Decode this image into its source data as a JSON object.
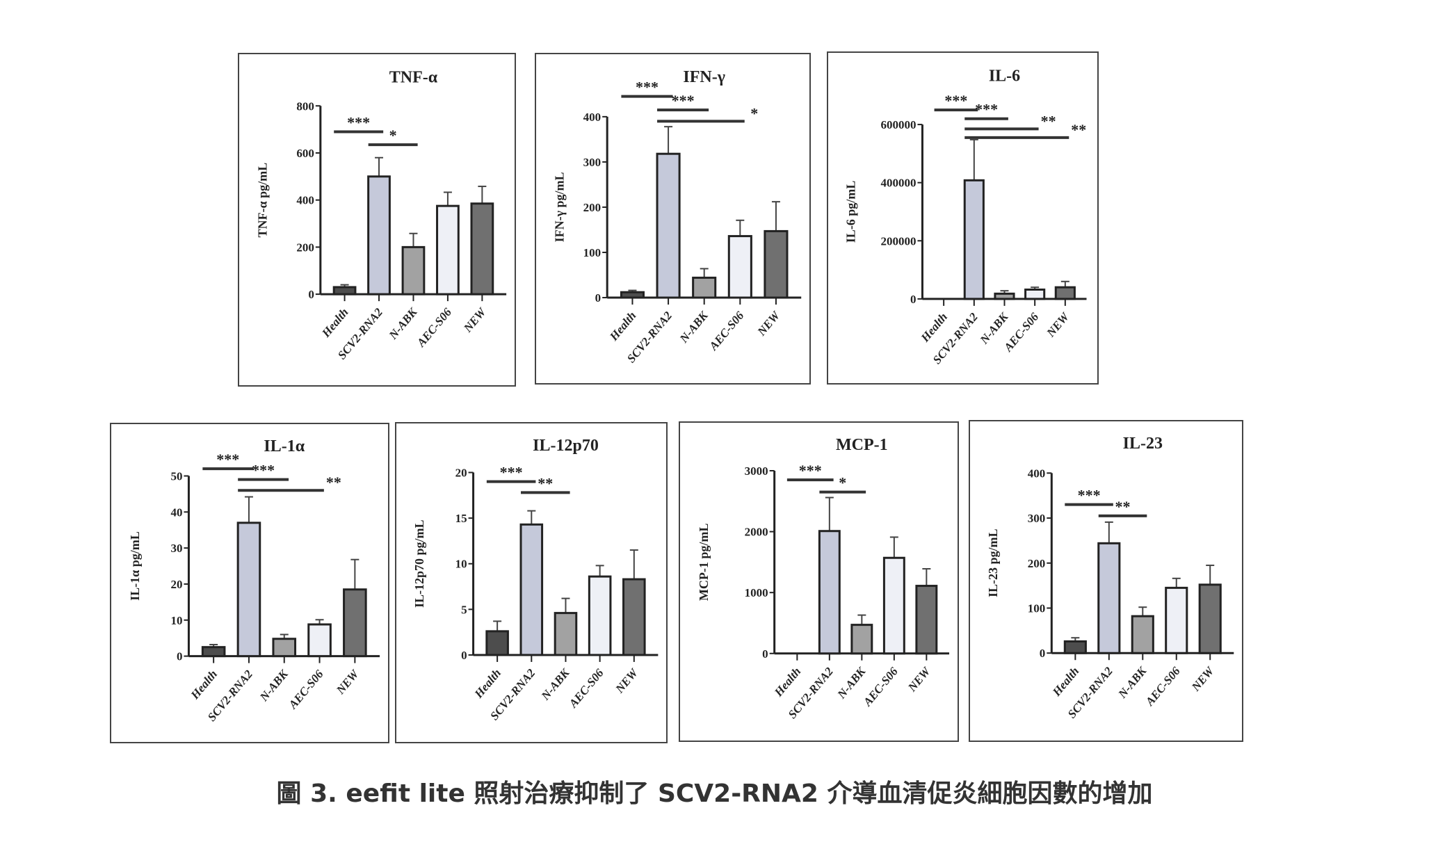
{
  "caption": "圖 3. eefit lite 照射治療抑制了 SCV2-RNA2 介導血清促炎細胞因數的增加",
  "colors": {
    "Health": "#4d4d4d",
    "SCV2-RNA2": "#c5c9da",
    "N-ABK": "#a2a2a2",
    "AEC-S06": "#eef0f6",
    "NEW": "#707070"
  },
  "chart_data": [
    {
      "type": "bar",
      "title": "TNF-α",
      "ylabel": "TNF-α pg/mL",
      "categories": [
        "Health",
        "SCV2-RNA2",
        "N-ABK",
        "AEC-S06",
        "NEW"
      ],
      "values": [
        30,
        500,
        200,
        375,
        385
      ],
      "errors": [
        10,
        80,
        58,
        58,
        73
      ],
      "ylim": [
        0,
        800
      ],
      "yticks": [
        0,
        200,
        400,
        600,
        800
      ],
      "significance": [
        {
          "from": 0,
          "to": 1,
          "label": "***",
          "y": 690
        },
        {
          "from": 1,
          "to": 2,
          "label": "*",
          "y": 635
        }
      ]
    },
    {
      "type": "bar",
      "title": "IFN-γ",
      "ylabel": "IFN-γ pg/mL",
      "categories": [
        "Health",
        "SCV2-RNA2",
        "N-ABK",
        "AEC-S06",
        "NEW"
      ],
      "values": [
        12,
        318,
        44,
        136,
        147
      ],
      "errors": [
        4,
        60,
        20,
        35,
        65
      ],
      "ylim": [
        0,
        400
      ],
      "yticks": [
        0,
        100,
        200,
        300,
        400
      ],
      "significance": [
        {
          "from": 0,
          "to": 1,
          "label": "***",
          "y": 445
        },
        {
          "from": 1,
          "to": 2,
          "label": "***",
          "y": 415
        },
        {
          "from": 1,
          "to": 3,
          "label": "*",
          "y": 390
        }
      ]
    },
    {
      "type": "bar",
      "title": "IL-6",
      "ylabel": "IL-6 pg/mL",
      "categories": [
        "Health",
        "SCV2-RNA2",
        "N-ABK",
        "AEC-S06",
        "NEW"
      ],
      "values": [
        0,
        408000,
        18000,
        32000,
        40000
      ],
      "errors": [
        0,
        140000,
        10000,
        8000,
        20000
      ],
      "ylim": [
        0,
        600000
      ],
      "yticks": [
        0,
        200000,
        400000,
        600000
      ],
      "significance": [
        {
          "from": 0,
          "to": 1,
          "label": "***",
          "y": 650000
        },
        {
          "from": 1,
          "to": 2,
          "label": "***",
          "y": 620000
        },
        {
          "from": 1,
          "to": 3,
          "label": "**",
          "y": 585000
        },
        {
          "from": 1,
          "to": 4,
          "label": "**",
          "y": 555000
        }
      ]
    },
    {
      "type": "bar",
      "title": "IL-1α",
      "ylabel": "IL-1α pg/mL",
      "categories": [
        "Health",
        "SCV2-RNA2",
        "N-ABK",
        "AEC-S06",
        "NEW"
      ],
      "values": [
        2.5,
        37,
        4.8,
        8.8,
        18.5
      ],
      "errors": [
        0.7,
        7.2,
        1.2,
        1.3,
        8.3
      ],
      "ylim": [
        0,
        50
      ],
      "yticks": [
        0,
        10,
        20,
        30,
        40,
        50
      ],
      "significance": [
        {
          "from": 0,
          "to": 1,
          "label": "***",
          "y": 52
        },
        {
          "from": 1,
          "to": 2,
          "label": "***",
          "y": 49
        },
        {
          "from": 1,
          "to": 3,
          "label": "**",
          "y": 46
        }
      ]
    },
    {
      "type": "bar",
      "title": "IL-12p70",
      "ylabel": "IL-12p70 pg/mL",
      "categories": [
        "Health",
        "SCV2-RNA2",
        "N-ABK",
        "AEC-S06",
        "NEW"
      ],
      "values": [
        2.6,
        14.3,
        4.6,
        8.6,
        8.3
      ],
      "errors": [
        1.1,
        1.5,
        1.6,
        1.2,
        3.2
      ],
      "ylim": [
        0,
        20
      ],
      "yticks": [
        0,
        5,
        10,
        15,
        20
      ],
      "significance": [
        {
          "from": 0,
          "to": 1,
          "label": "***",
          "y": 19
        },
        {
          "from": 1,
          "to": 2,
          "label": "**",
          "y": 17.8
        }
      ]
    },
    {
      "type": "bar",
      "title": "MCP-1",
      "ylabel": "MCP-1 pg/mL",
      "categories": [
        "Health",
        "SCV2-RNA2",
        "N-ABK",
        "AEC-S06",
        "NEW"
      ],
      "values": [
        0,
        2010,
        470,
        1570,
        1110
      ],
      "errors": [
        0,
        550,
        160,
        340,
        280
      ],
      "ylim": [
        0,
        3000
      ],
      "yticks": [
        0,
        1000,
        2000,
        3000
      ],
      "significance": [
        {
          "from": 0,
          "to": 1,
          "label": "***",
          "y": 2850
        },
        {
          "from": 1,
          "to": 2,
          "label": "*",
          "y": 2650
        }
      ]
    },
    {
      "type": "bar",
      "title": "IL-23",
      "ylabel": "IL-23 pg/mL",
      "categories": [
        "Health",
        "SCV2-RNA2",
        "N-ABK",
        "AEC-S06",
        "NEW"
      ],
      "values": [
        26,
        244,
        82,
        145,
        152
      ],
      "errors": [
        8,
        47,
        20,
        21,
        43
      ],
      "ylim": [
        0,
        400
      ],
      "yticks": [
        0,
        100,
        200,
        300,
        400
      ],
      "significance": [
        {
          "from": 0,
          "to": 1,
          "label": "***",
          "y": 330
        },
        {
          "from": 1,
          "to": 2,
          "label": "**",
          "y": 305
        }
      ]
    }
  ]
}
